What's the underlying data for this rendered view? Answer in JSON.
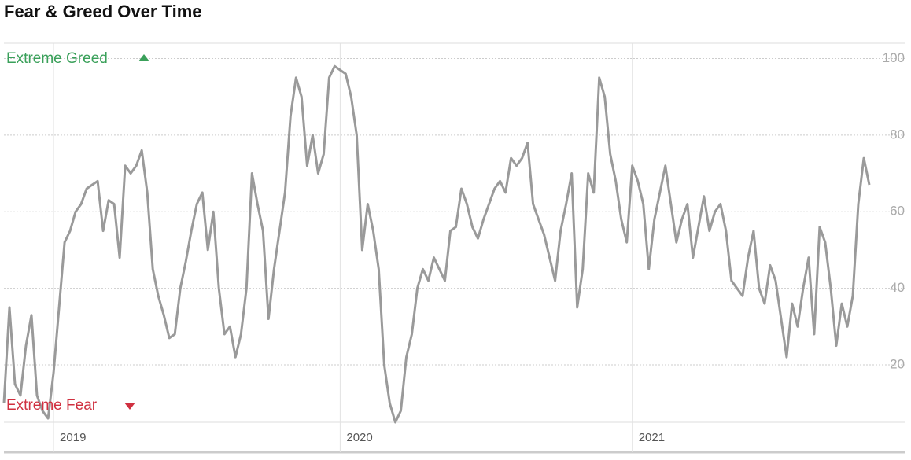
{
  "chart_data": {
    "type": "line",
    "title": "Fear & Greed Over Time",
    "annotations": [
      "Extreme Greed",
      "Extreme Fear"
    ],
    "categories": [
      null,
      null,
      null,
      null,
      null,
      null,
      null,
      null,
      null,
      "2019",
      null,
      null,
      null,
      null,
      null,
      null,
      null,
      null,
      null,
      null,
      null,
      null,
      null,
      null,
      null,
      null,
      null,
      null,
      null,
      null,
      null,
      null,
      null,
      null,
      null,
      null,
      null,
      null,
      null,
      null,
      null,
      null,
      null,
      null,
      null,
      null,
      null,
      null,
      null,
      null,
      null,
      null,
      null,
      null,
      null,
      null,
      null,
      null,
      null,
      null,
      null,
      "2020",
      null,
      null,
      null,
      null,
      null,
      null,
      null,
      null,
      null,
      null,
      null,
      null,
      null,
      null,
      null,
      null,
      null,
      null,
      null,
      null,
      null,
      null,
      null,
      null,
      null,
      null,
      null,
      null,
      null,
      null,
      null,
      null,
      null,
      null,
      null,
      null,
      null,
      null,
      null,
      null,
      null,
      null,
      null,
      null,
      null,
      null,
      null,
      null,
      null,
      null,
      null,
      null,
      "2021",
      null,
      null,
      null,
      null,
      null,
      null,
      null,
      null,
      null,
      null,
      null,
      null,
      null,
      null,
      null,
      null,
      null,
      null,
      null,
      null,
      null,
      null,
      null,
      null,
      null,
      null,
      null,
      null,
      null,
      null,
      null,
      null,
      null,
      null,
      null,
      null,
      null,
      null,
      null,
      null,
      null,
      null,
      null
    ],
    "values": [
      10,
      35,
      15,
      12,
      25,
      33,
      12,
      8,
      6,
      18,
      35,
      52,
      55,
      60,
      62,
      66,
      67,
      68,
      55,
      63,
      62,
      48,
      72,
      70,
      72,
      76,
      65,
      45,
      38,
      33,
      27,
      28,
      40,
      47,
      55,
      62,
      65,
      50,
      60,
      40,
      28,
      30,
      22,
      28,
      40,
      70,
      62,
      55,
      32,
      45,
      55,
      65,
      85,
      95,
      90,
      72,
      80,
      70,
      75,
      95,
      98,
      97,
      96,
      90,
      80,
      50,
      62,
      55,
      45,
      20,
      10,
      5,
      8,
      22,
      28,
      40,
      45,
      42,
      48,
      45,
      42,
      55,
      56,
      66,
      62,
      56,
      53,
      58,
      62,
      66,
      68,
      65,
      74,
      72,
      74,
      78,
      62,
      58,
      54,
      48,
      42,
      55,
      62,
      70,
      35,
      45,
      70,
      65,
      95,
      90,
      75,
      68,
      58,
      52,
      72,
      68,
      62,
      45,
      58,
      65,
      72,
      62,
      52,
      58,
      62,
      48,
      56,
      64,
      55,
      60,
      62,
      55,
      42,
      40,
      38,
      48,
      55,
      40,
      36,
      46,
      42,
      32,
      22,
      36,
      30,
      40,
      48,
      28,
      56,
      52,
      40,
      25,
      36,
      30,
      38,
      62,
      74,
      67
    ],
    "color": "#9a9a9a",
    "ylim": [
      5,
      104
    ],
    "yticks": [
      20,
      40,
      60,
      80,
      100
    ],
    "grid": true
  }
}
